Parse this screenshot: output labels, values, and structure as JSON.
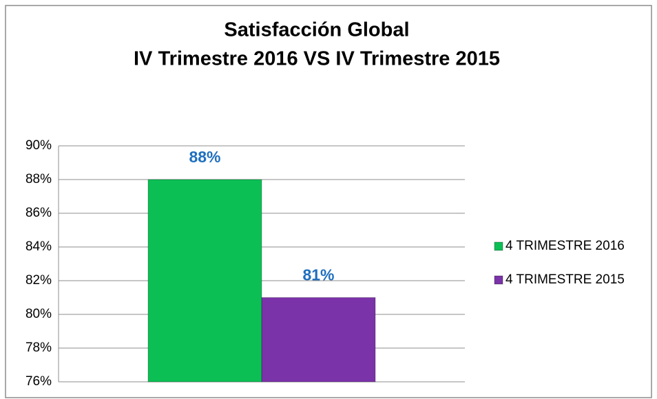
{
  "chart_data": {
    "type": "bar",
    "title": "Satisfacción Global",
    "subtitle": "IV Trimestre 2016 VS IV Trimestre 2015",
    "categories": [
      null
    ],
    "series": [
      {
        "name": "4 TRIMESTRE 2016",
        "color": "#0cbf55",
        "values": [
          88
        ],
        "value_labels": [
          "88%"
        ]
      },
      {
        "name": "4 TRIMESTRE 2015",
        "color": "#7a33a8",
        "values": [
          81
        ],
        "value_labels": [
          "81%"
        ]
      }
    ],
    "ylim": [
      76,
      90
    ],
    "yticks": [
      {
        "value": 76,
        "label": "76%"
      },
      {
        "value": 78,
        "label": "78%"
      },
      {
        "value": 80,
        "label": "80%"
      },
      {
        "value": 82,
        "label": "82%"
      },
      {
        "value": 84,
        "label": "84%"
      },
      {
        "value": 86,
        "label": "86%"
      },
      {
        "value": 88,
        "label": "88%"
      },
      {
        "value": 90,
        "label": "90%"
      }
    ],
    "grid": true,
    "legend": "right"
  }
}
